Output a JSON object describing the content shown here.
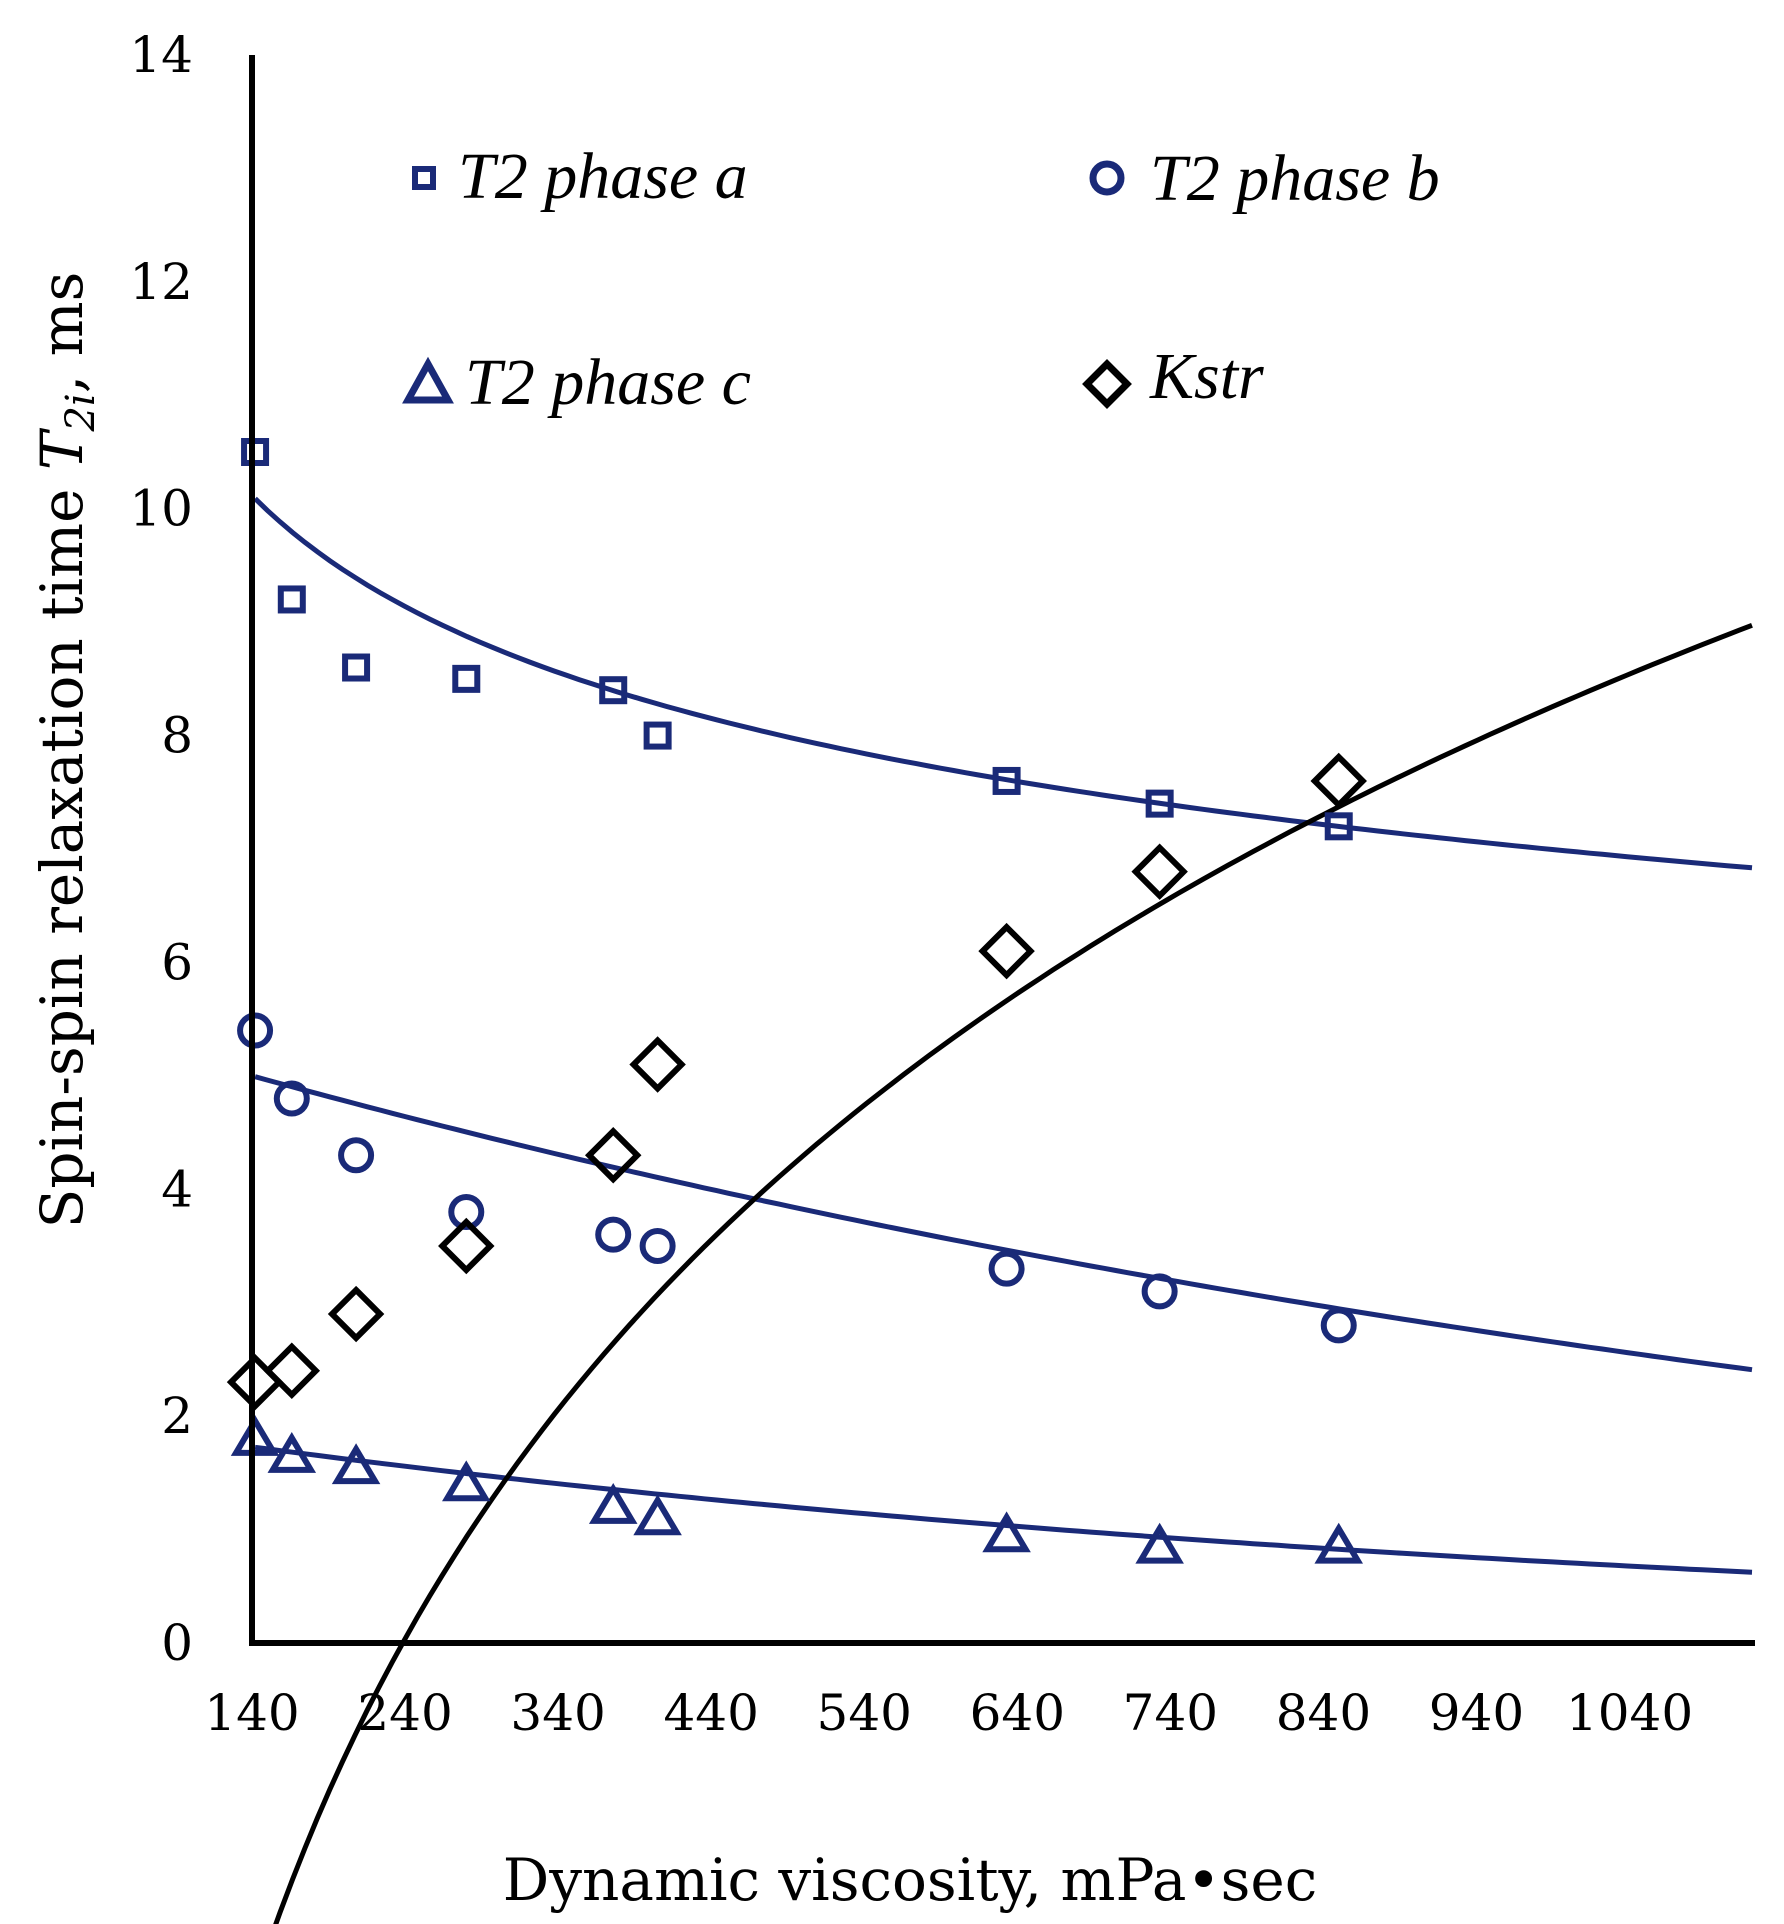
{
  "chart_data": {
    "type": "scatter",
    "title": "",
    "xlabel": "Dynamic viscosity, mPa•sec",
    "ylabel_main": "Spin-spin relaxation time ",
    "ylabel_symbol": "T",
    "ylabel_subscript": "2i",
    "ylabel_unit": ",  ms",
    "xlim": [
      140,
      1120
    ],
    "ylim": [
      0,
      14
    ],
    "x_ticks": [
      140,
      240,
      340,
      440,
      540,
      640,
      740,
      840,
      940,
      1040
    ],
    "y_ticks": [
      0,
      2,
      4,
      6,
      8,
      10,
      12,
      14
    ],
    "grid": false,
    "legend_placement": "top",
    "colors": {
      "navy": "#1a2a78",
      "black": "#000000"
    },
    "series": [
      {
        "name": "T2 phase a",
        "marker": "square",
        "color": "#1a2a78",
        "x": [
          142,
          166,
          208,
          280,
          376,
          405,
          633,
          733,
          850
        ],
        "y": [
          10.5,
          9.2,
          8.6,
          8.5,
          8.4,
          8.0,
          7.6,
          7.4,
          7.2
        ],
        "trendline": {
          "type": "power",
          "x_range": [
            142,
            1120
          ],
          "a": 25.69,
          "b": -0.1886
        }
      },
      {
        "name": "T2 phase b",
        "marker": "circle",
        "color": "#1a2a78",
        "x": [
          142,
          166,
          208,
          280,
          376,
          405,
          633,
          733,
          850
        ],
        "y": [
          5.4,
          4.8,
          4.3,
          3.8,
          3.6,
          3.5,
          3.3,
          3.1,
          2.8
        ],
        "trendline": {
          "type": "exponential",
          "x_range": [
            142,
            1120
          ],
          "a": 5.55,
          "b": -0.000745
        }
      },
      {
        "name": "T2 phase c",
        "marker": "triangle",
        "color": "#1a2a78",
        "x": [
          142,
          166,
          208,
          280,
          376,
          405,
          633,
          733,
          850
        ],
        "y": [
          1.8,
          1.65,
          1.55,
          1.4,
          1.2,
          1.1,
          0.95,
          0.85,
          0.85
        ],
        "trendline": {
          "type": "exponential",
          "x_range": [
            142,
            1120
          ],
          "a": 2.0,
          "b": -0.00104
        }
      },
      {
        "name": "Kstr",
        "marker": "diamond",
        "color": "#000000",
        "x": [
          142,
          166,
          208,
          280,
          376,
          405,
          633,
          733,
          850
        ],
        "y": [
          2.3,
          2.4,
          2.9,
          3.5,
          4.3,
          5.1,
          6.1,
          6.8,
          7.6
        ],
        "trendline": {
          "type": "log",
          "x_range": [
            142,
            1120
          ],
          "a": -31.75,
          "b": 5.8
        }
      }
    ]
  }
}
